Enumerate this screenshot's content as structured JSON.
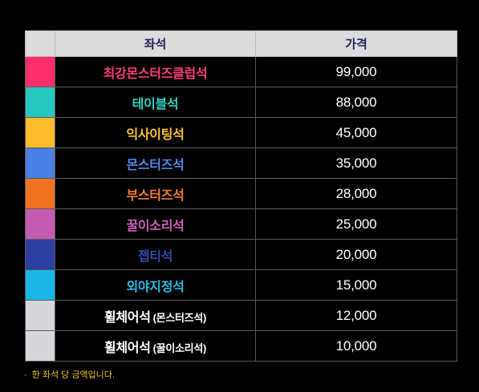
{
  "table": {
    "header": {
      "seat": "좌석",
      "price": "가격"
    },
    "rows": [
      {
        "seat": "최강몬스터즈클럽석",
        "sub": "",
        "price": "99,000",
        "color": "#ff2d6b",
        "text_color": "#ff3d74"
      },
      {
        "seat": "테이블석",
        "sub": "",
        "price": "88,000",
        "color": "#27c7bd",
        "text_color": "#2fd0c4"
      },
      {
        "seat": "익사이팅석",
        "sub": "",
        "price": "45,000",
        "color": "#ffbb2b",
        "text_color": "#ffbf33"
      },
      {
        "seat": "몬스터즈석",
        "sub": "",
        "price": "35,000",
        "color": "#4a7fe3",
        "text_color": "#4f86ec"
      },
      {
        "seat": "부스터즈석",
        "sub": "",
        "price": "28,000",
        "color": "#f07322",
        "text_color": "#f57a2a"
      },
      {
        "seat": "꿀이소리석",
        "sub": "",
        "price": "25,000",
        "color": "#c45bb2",
        "text_color": "#cf63bd"
      },
      {
        "seat": "젭티석",
        "sub": "",
        "price": "20,000",
        "color": "#2c3f9e",
        "text_color": "#3549ad"
      },
      {
        "seat": "외야지정석",
        "sub": "",
        "price": "15,000",
        "color": "#19b6e6",
        "text_color": "#22bdec"
      },
      {
        "seat": "휠체어석",
        "sub": "(몬스터즈석)",
        "price": "12,000",
        "color": "#d7d7db",
        "text_color": "#ffffff"
      },
      {
        "seat": "휠체어석",
        "sub": "(꿀이소리석)",
        "price": "10,000",
        "color": "#d7d7db",
        "text_color": "#ffffff"
      }
    ]
  },
  "note": {
    "bullet": "·",
    "text": "한 좌석 당 금액입니다."
  }
}
